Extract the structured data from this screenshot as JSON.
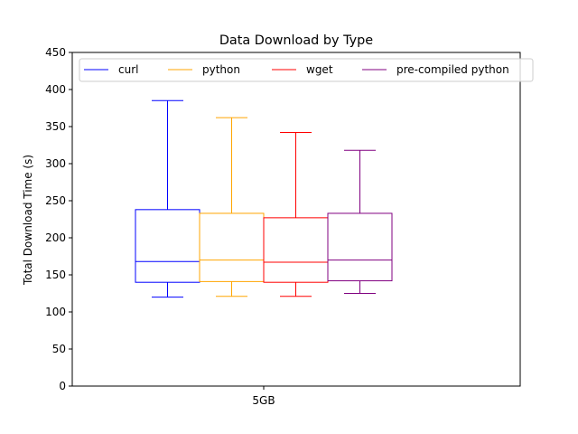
{
  "chart_data": {
    "type": "box",
    "title": "Data Download by Type",
    "xlabel": "",
    "ylabel": "Total Download Time (s)",
    "categories": [
      "5GB"
    ],
    "ylim": [
      0,
      450
    ],
    "yticks": [
      0,
      50,
      100,
      150,
      200,
      250,
      300,
      350,
      400,
      450
    ],
    "grid": false,
    "legend_position": "top",
    "series": [
      {
        "name": "curl",
        "color": "#0000ff",
        "whisker_low": 120,
        "q1": 140,
        "median": 168,
        "q3": 238,
        "whisker_high": 385
      },
      {
        "name": "python",
        "color": "#ffa500",
        "whisker_low": 121,
        "q1": 141,
        "median": 170,
        "q3": 233,
        "whisker_high": 362
      },
      {
        "name": "wget",
        "color": "#ff0000",
        "whisker_low": 121,
        "q1": 140,
        "median": 167,
        "q3": 227,
        "whisker_high": 342
      },
      {
        "name": "pre-compiled python",
        "color": "#800080",
        "whisker_low": 125,
        "q1": 142,
        "median": 170,
        "q3": 233,
        "whisker_high": 318
      }
    ]
  }
}
